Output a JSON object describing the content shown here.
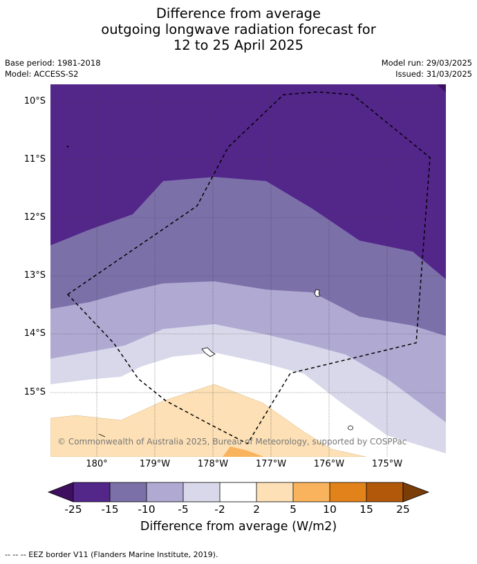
{
  "title": {
    "line1": "Difference from average",
    "line2": "outgoing longwave radiation forecast for",
    "line3": "12 to 25 April 2025"
  },
  "meta": {
    "base_period": "Base period: 1981-2018",
    "model": "Model: ACCESS-S2",
    "model_run": "Model run: 29/03/2025",
    "issued": "Issued: 31/03/2025"
  },
  "map": {
    "lat_labels": [
      "10°S",
      "11°S",
      "12°S",
      "13°S",
      "14°S",
      "15°S"
    ],
    "lon_labels": [
      "180°",
      "179°W",
      "178°W",
      "177°W",
      "176°W",
      "175°W"
    ],
    "copyright": "© Commonwealth of Australia 2025, Bureau of Meteorology, supported by COSPPac",
    "eez_border": "dashed black line"
  },
  "colorbar": {
    "ticks": [
      "-25",
      "-15",
      "-10",
      "-5",
      "-2",
      "2",
      "5",
      "10",
      "15",
      "25"
    ],
    "colors": [
      "#3f0f5f",
      "#53268a",
      "#7c70a9",
      "#b0aad3",
      "#d8d8ea",
      "#ffffff",
      "#fde0b5",
      "#f9b35d",
      "#e2821b",
      "#b2580a",
      "#7a3d08"
    ],
    "label": "Difference from average (W/m2)"
  },
  "footnote": "-- -- -- EEZ border V11 (Flanders Marine Institute, 2019)."
}
